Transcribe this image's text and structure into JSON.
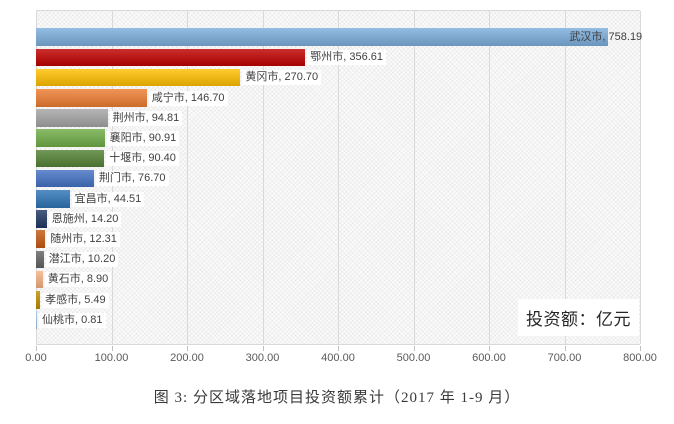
{
  "chart_data": {
    "type": "bar",
    "orientation": "horizontal",
    "title": "",
    "annotation": "投资额：亿元",
    "caption": "图 3: 分区域落地项目投资额累计（2017 年 1-9 月）",
    "xlim": [
      0,
      800
    ],
    "x_ticks": [
      "0.00",
      "100.00",
      "200.00",
      "300.00",
      "400.00",
      "500.00",
      "600.00",
      "700.00",
      "800.00"
    ],
    "grid": true,
    "legend_position": "none",
    "categories": [
      "武汉市",
      "鄂州市",
      "黄冈市",
      "咸宁市",
      "荆州市",
      "襄阳市",
      "十堰市",
      "荆门市",
      "宜昌市",
      "恩施州",
      "随州市",
      "潜江市",
      "黄石市",
      "孝感市",
      "仙桃市"
    ],
    "values": [
      758.19,
      356.61,
      270.7,
      146.7,
      94.81,
      90.91,
      90.4,
      76.7,
      44.51,
      14.2,
      12.31,
      10.2,
      8.9,
      5.49,
      0.81
    ],
    "bars": [
      {
        "category": "武汉市",
        "value": 758.19,
        "label": "武汉市, 758.19",
        "color": "#7CAEDC",
        "label_inside": true
      },
      {
        "category": "鄂州市",
        "value": 356.61,
        "label": "鄂州市, 356.61",
        "color": "#C00000",
        "label_inside": false
      },
      {
        "category": "黄冈市",
        "value": 270.7,
        "label": "黄冈市, 270.70",
        "color": "#FFC000",
        "label_inside": false
      },
      {
        "category": "咸宁市",
        "value": 146.7,
        "label": "咸宁市, 146.70",
        "color": "#ED7D31",
        "label_inside": false
      },
      {
        "category": "荆州市",
        "value": 94.81,
        "label": "荆州市, 94.81",
        "color": "#A5A5A5",
        "label_inside": false
      },
      {
        "category": "襄阳市",
        "value": 90.91,
        "label": "襄阳市, 90.91",
        "color": "#70AD47",
        "label_inside": false
      },
      {
        "category": "十堰市",
        "value": 90.4,
        "label": "十堰市, 90.40",
        "color": "#548235",
        "label_inside": false
      },
      {
        "category": "荆门市",
        "value": 76.7,
        "label": "荆门市, 76.70",
        "color": "#4472C4",
        "label_inside": false
      },
      {
        "category": "宜昌市",
        "value": 44.51,
        "label": "宜昌市, 44.51",
        "color": "#2E75B6",
        "label_inside": false
      },
      {
        "category": "恩施州",
        "value": 14.2,
        "label": "恩施州, 14.20",
        "color": "#203864",
        "label_inside": false
      },
      {
        "category": "随州市",
        "value": 12.31,
        "label": "随州市, 12.31",
        "color": "#C55A11",
        "label_inside": false
      },
      {
        "category": "潜江市",
        "value": 10.2,
        "label": "潜江市, 10.20",
        "color": "#636363",
        "label_inside": false
      },
      {
        "category": "黄石市",
        "value": 8.9,
        "label": "黄石市, 8.90",
        "color": "#F4B183",
        "label_inside": false
      },
      {
        "category": "孝感市",
        "value": 5.49,
        "label": "孝感市, 5.49",
        "color": "#BF8F00",
        "label_inside": false
      },
      {
        "category": "仙桃市",
        "value": 0.81,
        "label": "仙桃市, 0.81",
        "color": "#9DC3E6",
        "label_inside": false
      }
    ]
  },
  "colors": {
    "grid_color": "#d9d9d9",
    "axis_color": "#c0c0c0",
    "label_text": "#3f3f3f",
    "tick_text": "#595959",
    "annotation_text": "#262626",
    "caption_text": "#3a3a3a"
  }
}
